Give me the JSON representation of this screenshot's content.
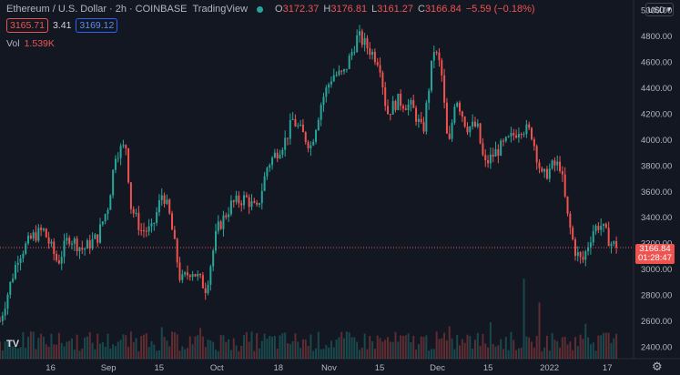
{
  "header": {
    "symbol": "Ethereum / U.S. Dollar",
    "interval": "2h",
    "exchange": "COINBASE",
    "platform": "TradingView",
    "status_color": "#26a69a",
    "open_key": "O",
    "open": "3172.37",
    "high_key": "H",
    "high": "3176.81",
    "low_key": "L",
    "low": "3161.27",
    "close_key": "C",
    "close": "3166.84",
    "change": "−5.59 (−0.18%)",
    "sell_price": "3165.71",
    "spread": "3.41",
    "buy_price": "3169.12",
    "volume_label": "Vol",
    "volume_value": "1.539K"
  },
  "price_axis": {
    "currency": "USD",
    "last_price": "3166.84",
    "countdown": "01:28:47"
  },
  "colors": {
    "up": "#26a69a",
    "down": "#ef5350",
    "background": "#131722",
    "grid": "#1e222d"
  },
  "icons": {
    "logo": "tradingview-logo-icon",
    "settings": "gear-icon",
    "dropdown": "chevron-down-icon"
  },
  "logo_text": "TV",
  "chart_data": {
    "type": "candlestick",
    "title": "Ethereum / U.S. Dollar · 2h · COINBASE",
    "xlabel": "",
    "ylabel": "",
    "y_ticks": [
      5000,
      4800,
      4600,
      4400,
      4200,
      4000,
      3800,
      3600,
      3400,
      3200,
      3000,
      2800,
      2600,
      2400
    ],
    "y_labels": [
      "5000.00",
      "4800.00",
      "4600.00",
      "4400.00",
      "4200.00",
      "4000.00",
      "3800.00",
      "3600.00",
      "3400.00",
      "3200.00",
      "3000.00",
      "2800.00",
      "2600.00",
      "2400.00"
    ],
    "ylim": [
      2310,
      5020
    ],
    "x_labels": [
      "16",
      "Sep",
      "15",
      "Oct",
      "18",
      "Nov",
      "15",
      "Dec",
      "15",
      "2022",
      "17"
    ],
    "x_dates": [
      "2021-08-16",
      "2021-09-01",
      "2021-09-15",
      "2021-10-01",
      "2021-10-18",
      "2021-11-01",
      "2021-11-15",
      "2021-12-01",
      "2021-12-15",
      "2022-01-01",
      "2022-01-17"
    ],
    "xlim": [
      "2021-08-02",
      "2022-01-24"
    ],
    "grid": false,
    "last_price_line": 3166.84,
    "approx_close_path": [
      {
        "date": "2021-08-02",
        "price": 2600
      },
      {
        "date": "2021-08-04",
        "price": 2800
      },
      {
        "date": "2021-08-07",
        "price": 3100
      },
      {
        "date": "2021-08-11",
        "price": 3250
      },
      {
        "date": "2021-08-14",
        "price": 3300
      },
      {
        "date": "2021-08-18",
        "price": 3050
      },
      {
        "date": "2021-08-21",
        "price": 3250
      },
      {
        "date": "2021-08-25",
        "price": 3150
      },
      {
        "date": "2021-08-29",
        "price": 3250
      },
      {
        "date": "2021-09-01",
        "price": 3500
      },
      {
        "date": "2021-09-03",
        "price": 3900
      },
      {
        "date": "2021-09-06",
        "price": 3950
      },
      {
        "date": "2021-09-07",
        "price": 3500
      },
      {
        "date": "2021-09-10",
        "price": 3300
      },
      {
        "date": "2021-09-13",
        "price": 3300
      },
      {
        "date": "2021-09-16",
        "price": 3600
      },
      {
        "date": "2021-09-18",
        "price": 3400
      },
      {
        "date": "2021-09-21",
        "price": 2900
      },
      {
        "date": "2021-09-24",
        "price": 3000
      },
      {
        "date": "2021-09-28",
        "price": 2850
      },
      {
        "date": "2021-10-01",
        "price": 3300
      },
      {
        "date": "2021-10-05",
        "price": 3500
      },
      {
        "date": "2021-10-09",
        "price": 3550
      },
      {
        "date": "2021-10-12",
        "price": 3450
      },
      {
        "date": "2021-10-15",
        "price": 3800
      },
      {
        "date": "2021-10-20",
        "price": 4000
      },
      {
        "date": "2021-10-22",
        "price": 4150
      },
      {
        "date": "2021-10-27",
        "price": 3950
      },
      {
        "date": "2021-10-30",
        "price": 4300
      },
      {
        "date": "2021-11-02",
        "price": 4500
      },
      {
        "date": "2021-11-05",
        "price": 4500
      },
      {
        "date": "2021-11-09",
        "price": 4800
      },
      {
        "date": "2021-11-12",
        "price": 4700
      },
      {
        "date": "2021-11-15",
        "price": 4600
      },
      {
        "date": "2021-11-17",
        "price": 4200
      },
      {
        "date": "2021-11-20",
        "price": 4300
      },
      {
        "date": "2021-11-24",
        "price": 4250
      },
      {
        "date": "2021-11-27",
        "price": 4050
      },
      {
        "date": "2021-11-30",
        "price": 4700
      },
      {
        "date": "2021-12-02",
        "price": 4550
      },
      {
        "date": "2021-12-04",
        "price": 3900
      },
      {
        "date": "2021-12-06",
        "price": 4350
      },
      {
        "date": "2021-12-09",
        "price": 4100
      },
      {
        "date": "2021-12-12",
        "price": 4100
      },
      {
        "date": "2021-12-14",
        "price": 3800
      },
      {
        "date": "2021-12-17",
        "price": 3900
      },
      {
        "date": "2021-12-21",
        "price": 4000
      },
      {
        "date": "2021-12-24",
        "price": 4100
      },
      {
        "date": "2021-12-27",
        "price": 4050
      },
      {
        "date": "2021-12-30",
        "price": 3700
      },
      {
        "date": "2022-01-02",
        "price": 3800
      },
      {
        "date": "2022-01-04",
        "price": 3800
      },
      {
        "date": "2022-01-06",
        "price": 3400
      },
      {
        "date": "2022-01-08",
        "price": 3150
      },
      {
        "date": "2022-01-10",
        "price": 3050
      },
      {
        "date": "2022-01-13",
        "price": 3300
      },
      {
        "date": "2022-01-15",
        "price": 3350
      },
      {
        "date": "2022-01-18",
        "price": 3200
      },
      {
        "date": "2022-01-20",
        "price": 3166.84
      }
    ]
  }
}
